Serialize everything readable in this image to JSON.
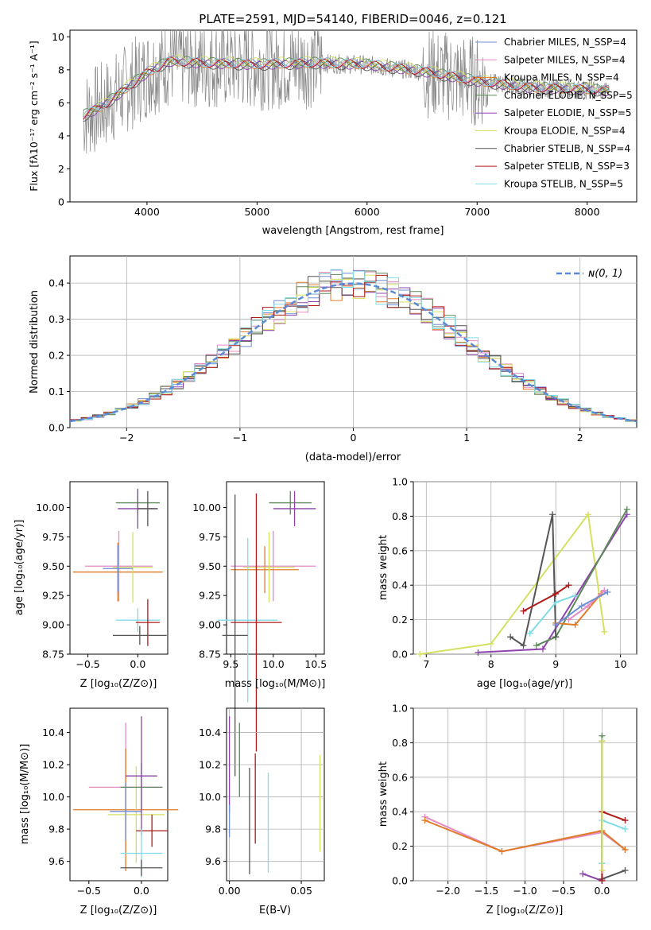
{
  "figure_title": "PLATE=2591, MJD=54140, FIBERID=0046, z=0.121",
  "colors": [
    "#6f8fd6",
    "#e48ac4",
    "#e07b26",
    "#5c8a58",
    "#8e44ad",
    "#d5e060",
    "#555555",
    "#b01a1a",
    "#7fdce8"
  ],
  "chart_data": [
    {
      "id": "spectrum",
      "type": "line",
      "xlabel": "wavelength [Angstrom, rest frame]",
      "ylabel": "Flux [fλ10⁻¹⁷ erg cm⁻² s⁻¹ A⁻¹]",
      "xlim": [
        3300,
        8450
      ],
      "ylim": [
        0,
        10.4
      ],
      "xticks": [
        4000,
        5000,
        6000,
        7000,
        8000
      ],
      "yticks": [
        0,
        2,
        4,
        6,
        8,
        10
      ],
      "grid": false,
      "legend": "top-right",
      "series": [
        {
          "name": "Chabrier MILES, N_SSP=4"
        },
        {
          "name": "Salpeter MILES, N_SSP=4"
        },
        {
          "name": "Kroupa MILES, N_SSP=4"
        },
        {
          "name": "Chabrier ELODIE, N_SSP=5"
        },
        {
          "name": "Salpeter ELODIE, N_SSP=5"
        },
        {
          "name": "Kroupa ELODIE, N_SSP=4"
        },
        {
          "name": "Chabrier STELIB, N_SSP=4"
        },
        {
          "name": "Salpeter STELIB, N_SSP=3"
        },
        {
          "name": "Kroupa STELIB, N_SSP=5"
        }
      ],
      "data_trend": {
        "x": [
          3420,
          3600,
          3800,
          4000,
          4200,
          4500,
          5000,
          5500,
          6000,
          6500,
          7000,
          7500,
          8000,
          8200
        ],
        "y": [
          5.2,
          5.8,
          6.8,
          7.8,
          8.5,
          8.4,
          8.3,
          8.4,
          8.3,
          7.9,
          7.3,
          6.9,
          6.8,
          6.7
        ]
      }
    },
    {
      "id": "residuals",
      "type": "step",
      "xlabel": "(data-model)/error",
      "ylabel": "Normed distribution",
      "xlim": [
        -2.5,
        2.5
      ],
      "ylim": [
        0,
        0.475
      ],
      "xticks": [
        -2,
        -1,
        0,
        1,
        2
      ],
      "yticks": [
        0.0,
        0.1,
        0.2,
        0.3,
        0.4
      ],
      "grid": true,
      "legend": "top-right",
      "reference_curve": "ɴ(0, 1)"
    },
    {
      "id": "age_vs_Z",
      "type": "errorbar",
      "xlabel": "Z [log₁₀(Z/Z⊙)]",
      "ylabel": "age  [log₁₀(age/yr)]",
      "xlim": [
        -0.68,
        0.3
      ],
      "ylim": [
        8.75,
        10.22
      ],
      "xticks": [
        -0.5,
        0.0
      ],
      "yticks": [
        8.75,
        9.0,
        9.25,
        9.5,
        9.75,
        10.0
      ],
      "points": [
        {
          "c": 1,
          "x": -0.19,
          "y": 9.5,
          "xe": 0.34,
          "ye": 0.3
        },
        {
          "c": 2,
          "x": -0.2,
          "y": 9.45,
          "xe": 0.45,
          "ye": 0.25
        },
        {
          "c": 5,
          "x": -0.05,
          "y": 9.49,
          "xe": 0.2,
          "ye": 0.3
        },
        {
          "c": 0,
          "x": -0.2,
          "y": 9.48,
          "xe": 0.15,
          "ye": 0.2
        },
        {
          "c": 3,
          "x": 0.0,
          "y": 10.04,
          "xe": 0.22,
          "ye": 0.1
        },
        {
          "c": 4,
          "x": 0.0,
          "y": 9.99,
          "xe": 0.2,
          "ye": 0.17
        },
        {
          "c": 6,
          "x": 0.1,
          "y": 9.99,
          "xe": 0.1,
          "ye": 0.15
        },
        {
          "c": 8,
          "x": 0.0,
          "y": 9.04,
          "xe": 0.22,
          "ye": 0.1
        },
        {
          "c": 7,
          "x": 0.1,
          "y": 9.02,
          "xe": 0.12,
          "ye": 0.2
        },
        {
          "c": 6,
          "x": 0.02,
          "y": 8.91,
          "xe": 0.27,
          "ye": 0.08
        }
      ]
    },
    {
      "id": "age_vs_mass",
      "type": "errorbar",
      "xlabel": "mass [log₁₀(M/M⊙)]",
      "ylabel": "",
      "xlim": [
        9.45,
        10.6
      ],
      "ylim": [
        8.75,
        10.22
      ],
      "xticks": [
        9.5,
        10.0,
        10.5
      ],
      "yticks": [
        8.75,
        9.0,
        9.25,
        9.5,
        9.75,
        10.0
      ],
      "points": [
        {
          "c": 1,
          "x": 10.0,
          "y": 9.5,
          "xe": 0.5,
          "ye": 0.3
        },
        {
          "c": 2,
          "x": 9.9,
          "y": 9.47,
          "xe": 0.4,
          "ye": 0.2
        },
        {
          "c": 5,
          "x": 9.95,
          "y": 9.49,
          "xe": 0.3,
          "ye": 0.3
        },
        {
          "c": 3,
          "x": 10.2,
          "y": 10.04,
          "xe": 0.25,
          "ye": 0.1
        },
        {
          "c": 4,
          "x": 10.25,
          "y": 9.99,
          "xe": 0.25,
          "ye": 0.15
        },
        {
          "c": 8,
          "x": 9.7,
          "y": 9.04,
          "xe": 0.35,
          "ye": 0.7
        },
        {
          "c": 7,
          "x": 9.8,
          "y": 9.02,
          "xe": 0.3,
          "ye": 1.1
        },
        {
          "c": 6,
          "x": 9.55,
          "y": 8.91,
          "xe": 0.15,
          "ye": 1.2
        }
      ]
    },
    {
      "id": "weight_vs_age",
      "type": "line",
      "xlabel": "age  [log₁₀(age/yr)]",
      "ylabel": "mass weight",
      "xlim": [
        6.8,
        10.25
      ],
      "ylim": [
        0.0,
        1.0
      ],
      "xticks": [
        7,
        8,
        9,
        10
      ],
      "yticks": [
        0.0,
        0.2,
        0.4,
        0.6,
        0.8,
        1.0
      ],
      "grid": true,
      "series": [
        {
          "c": 5,
          "x": [
            6.9,
            8.0,
            9.5,
            9.75
          ],
          "y": [
            0.0,
            0.06,
            0.81,
            0.13
          ]
        },
        {
          "c": 4,
          "x": [
            7.8,
            8.8,
            10.1
          ],
          "y": [
            0.01,
            0.03,
            0.81
          ]
        },
        {
          "c": 3,
          "x": [
            8.7,
            9.0,
            10.1
          ],
          "y": [
            0.05,
            0.1,
            0.84
          ]
        },
        {
          "c": 6,
          "x": [
            8.3,
            8.5,
            8.95,
            9.0
          ],
          "y": [
            0.1,
            0.05,
            0.81,
            0.1
          ]
        },
        {
          "c": 7,
          "x": [
            8.5,
            9.0,
            9.2
          ],
          "y": [
            0.25,
            0.35,
            0.4
          ]
        },
        {
          "c": 8,
          "x": [
            8.6,
            9.0,
            9.3
          ],
          "y": [
            0.12,
            0.3,
            0.34
          ]
        },
        {
          "c": 2,
          "x": [
            9.0,
            9.3,
            9.7
          ],
          "y": [
            0.18,
            0.17,
            0.35
          ]
        },
        {
          "c": 1,
          "x": [
            9.2,
            9.5,
            9.75
          ],
          "y": [
            0.2,
            0.28,
            0.37
          ]
        },
        {
          "c": 0,
          "x": [
            9.0,
            9.4,
            9.8
          ],
          "y": [
            0.17,
            0.28,
            0.36
          ]
        }
      ]
    },
    {
      "id": "mass_vs_Z",
      "type": "errorbar",
      "xlabel": "Z [log₁₀(Z/Z⊙)]",
      "ylabel": "mass [log₁₀(M/M⊙)]",
      "xlim": [
        -0.68,
        0.25
      ],
      "ylim": [
        9.48,
        10.55
      ],
      "xticks": [
        -0.5,
        0.0
      ],
      "yticks": [
        9.6,
        9.8,
        10.0,
        10.2,
        10.4
      ],
      "points": [
        {
          "c": 1,
          "x": -0.15,
          "y": 10.06,
          "xe": 0.35,
          "ye": 0.4
        },
        {
          "c": 2,
          "x": -0.15,
          "y": 9.92,
          "xe": 0.5,
          "ye": 0.38
        },
        {
          "c": 5,
          "x": -0.05,
          "y": 9.89,
          "xe": 0.27,
          "ye": 0.3
        },
        {
          "c": 0,
          "x": -0.15,
          "y": 9.91,
          "xe": 0.15,
          "ye": 0.18
        },
        {
          "c": 3,
          "x": 0.0,
          "y": 10.06,
          "xe": 0.2,
          "ye": 0.15
        },
        {
          "c": 4,
          "x": 0.0,
          "y": 10.13,
          "xe": 0.15,
          "ye": 0.37
        },
        {
          "c": 7,
          "x": 0.1,
          "y": 9.79,
          "xe": 0.15,
          "ye": 0.1
        },
        {
          "c": 8,
          "x": 0.0,
          "y": 9.65,
          "xe": 0.2,
          "ye": 0.15
        },
        {
          "c": 6,
          "x": 0.0,
          "y": 9.56,
          "xe": 0.2,
          "ye": 0.05
        }
      ]
    },
    {
      "id": "mass_vs_EBV",
      "type": "errorbar",
      "xlabel": "E(B-V)",
      "ylabel": "",
      "xlim": [
        -0.002,
        0.066
      ],
      "ylim": [
        9.48,
        10.55
      ],
      "xticks": [
        0.0,
        0.05
      ],
      "yticks": [
        9.6,
        9.8,
        10.0,
        10.2,
        10.4
      ],
      "grid": true,
      "points": [
        {
          "c": 4,
          "x": 0.0,
          "y": 10.2,
          "ye": 0.3
        },
        {
          "c": 3,
          "x": 0.007,
          "y": 10.23,
          "ye": 0.23
        },
        {
          "c": 6,
          "x": 0.014,
          "y": 9.85,
          "ye": 0.33
        },
        {
          "c": 7,
          "x": 0.018,
          "y": 9.99,
          "ye": 0.28
        },
        {
          "c": 8,
          "x": 0.027,
          "y": 9.84,
          "ye": 0.31
        },
        {
          "c": 5,
          "x": 0.063,
          "y": 9.96,
          "ye": 0.3
        },
        {
          "c": 0,
          "x": 0.0,
          "y": 9.85,
          "ye": 0.1
        }
      ]
    },
    {
      "id": "weight_vs_Z",
      "type": "line",
      "xlabel": "Z [log₁₀(Z/Z⊙)]",
      "ylabel": "mass weight",
      "xlim": [
        -2.45,
        0.45
      ],
      "ylim": [
        0.0,
        1.0
      ],
      "xticks": [
        -2.0,
        -1.5,
        -1.0,
        -0.5,
        0.0
      ],
      "yticks": [
        0.0,
        0.2,
        0.4,
        0.6,
        0.8,
        1.0
      ],
      "grid": true,
      "series": [
        {
          "c": 1,
          "x": [
            -2.3,
            -1.3,
            0.0,
            0.3
          ],
          "y": [
            0.37,
            0.17,
            0.28,
            0.18
          ]
        },
        {
          "c": 2,
          "x": [
            -2.3,
            -1.3,
            0.0,
            0.3
          ],
          "y": [
            0.35,
            0.17,
            0.29,
            0.18
          ]
        },
        {
          "c": 4,
          "x": [
            -0.25,
            0.0
          ],
          "y": [
            0.04,
            0.0
          ]
        },
        {
          "c": 3,
          "x": [
            0.0,
            0.0
          ],
          "y": [
            0.1,
            0.84
          ]
        },
        {
          "c": 6,
          "x": [
            0.0,
            0.0,
            0.0,
            0.3
          ],
          "y": [
            0.81,
            0.0,
            0.01,
            0.06
          ]
        },
        {
          "c": 7,
          "x": [
            0.0,
            0.0,
            0.3
          ],
          "y": [
            0.0,
            0.4,
            0.35
          ]
        },
        {
          "c": 8,
          "x": [
            0.0,
            0.0,
            0.3
          ],
          "y": [
            0.1,
            0.35,
            0.3
          ]
        },
        {
          "c": 5,
          "x": [
            0.0,
            0.0
          ],
          "y": [
            0.06,
            0.81
          ]
        }
      ]
    }
  ]
}
